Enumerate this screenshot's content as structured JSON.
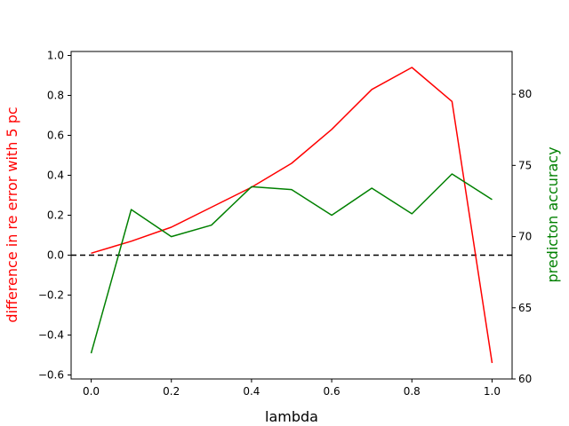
{
  "chart_data": {
    "type": "line",
    "xlabel": "lambda",
    "ylabel_left": "difference in re error with 5 pc",
    "ylabel_right": "predicton accuracy",
    "x": [
      0.0,
      0.1,
      0.2,
      0.3,
      0.4,
      0.5,
      0.6,
      0.7,
      0.8,
      0.9,
      1.0
    ],
    "xlim": [
      -0.05,
      1.05
    ],
    "ylim_left": [
      -0.62,
      1.02
    ],
    "ylim_right": [
      60,
      83
    ],
    "x_ticks": [
      "0.0",
      "0.2",
      "0.4",
      "0.6",
      "0.8",
      "1.0"
    ],
    "y_ticks_left": [
      "−0.6",
      "−0.4",
      "−0.2",
      "0.0",
      "0.2",
      "0.4",
      "0.6",
      "0.8",
      "1.0"
    ],
    "y_ticks_right": [
      "60",
      "65",
      "70",
      "75",
      "80"
    ],
    "series": [
      {
        "axis": "left",
        "color": "#ff0000",
        "values": [
          0.01,
          0.07,
          0.14,
          0.24,
          0.34,
          0.46,
          0.63,
          0.83,
          0.94,
          0.77,
          -0.54
        ]
      },
      {
        "axis": "right",
        "color": "#008000",
        "values": [
          61.8,
          71.9,
          70.0,
          70.8,
          73.5,
          73.3,
          71.5,
          73.4,
          71.6,
          74.4,
          72.6
        ]
      }
    ],
    "reference_line": {
      "y": 0.0,
      "axis": "left",
      "style": "dashed",
      "color": "#000000"
    },
    "grid": false,
    "legend": "none"
  }
}
